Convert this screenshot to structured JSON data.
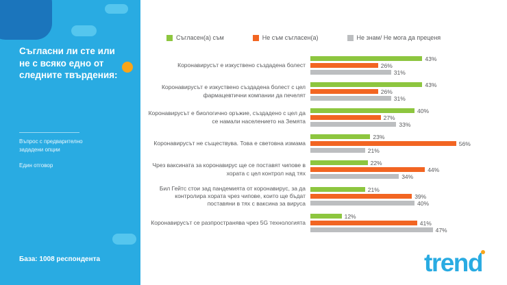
{
  "sidebar": {
    "title": "Съгласни ли сте или не с всяко едно от следните твърдения:",
    "note1": "Въпрос с предварително зададени опции",
    "note2": "Един отговор",
    "base": "База: 1008 респондента"
  },
  "legend": [
    {
      "label": "Съгласен(а) съм",
      "color": "#8dc63f"
    },
    {
      "label": "Не съм съгласен(а)",
      "color": "#f26522"
    },
    {
      "label": "Не знам/ Не мога да преценя",
      "color": "#bcbec0"
    }
  ],
  "chart_data": {
    "type": "bar",
    "orientation": "horizontal",
    "value_suffix": "%",
    "xlim": [
      0,
      100
    ],
    "legend_position": "top",
    "categories": [
      "Коронавирусът е изкуствено създадена болест",
      "Коронавирусът е изкуствено създадена болест с цел фармацевтични компании да печелят",
      "Коронавирусът е биологично оръжие, създадено с цел да се намали населението на Земята",
      "Коронавирусът не съществува. Това е световна измама",
      "Чрез ваксината за коронавирус ще се поставят чипове в хората с цел контрол над тях",
      "Бил Гейтс стои зад пандемията от коронавирус, за да контролира хората чрез чипове, които ще бъдат поставяни в тях с ваксина за вируса",
      "Коронавирусът се разпространява чрез 5G технологията"
    ],
    "series": [
      {
        "name": "Съгласен(а) съм",
        "color": "#8dc63f",
        "values": [
          43,
          43,
          40,
          23,
          22,
          21,
          12
        ]
      },
      {
        "name": "Не съм съгласен(а)",
        "color": "#f26522",
        "values": [
          26,
          26,
          27,
          56,
          44,
          39,
          41
        ]
      },
      {
        "name": "Не знам/ Не мога да преценя",
        "color": "#bcbec0",
        "values": [
          31,
          31,
          33,
          21,
          34,
          40,
          47
        ]
      }
    ]
  },
  "logo": {
    "text": "trend"
  }
}
